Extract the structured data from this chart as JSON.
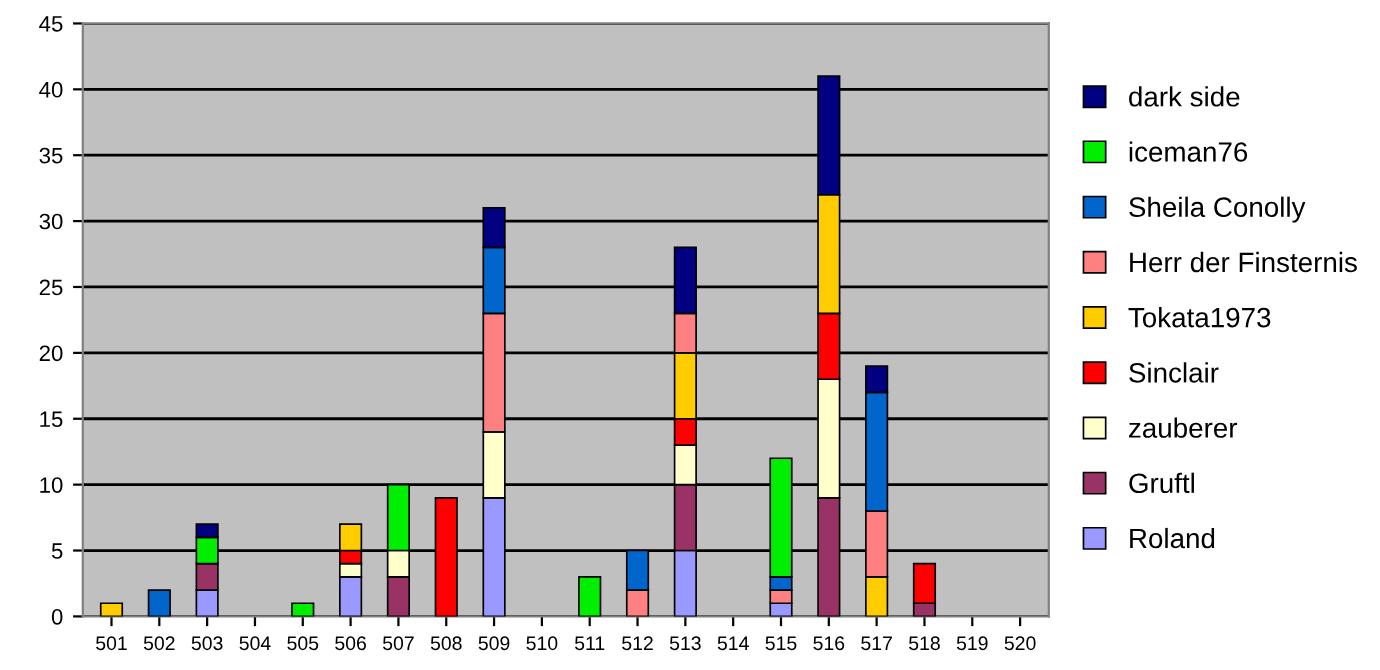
{
  "chart_data": {
    "type": "bar",
    "stacked": true,
    "categories": [
      "501",
      "502",
      "503",
      "504",
      "505",
      "506",
      "507",
      "508",
      "509",
      "510",
      "511",
      "512",
      "513",
      "514",
      "515",
      "516",
      "517",
      "518",
      "519",
      "520"
    ],
    "series": [
      {
        "name": "Roland",
        "color": "#9999ff",
        "values": [
          0,
          0,
          2,
          0,
          0,
          3,
          0,
          0,
          9,
          0,
          0,
          0,
          5,
          0,
          1,
          0,
          0,
          0,
          0,
          0
        ]
      },
      {
        "name": "Gruftl",
        "color": "#993366",
        "values": [
          0,
          0,
          2,
          0,
          0,
          0,
          3,
          0,
          0,
          0,
          0,
          0,
          5,
          0,
          0,
          9,
          0,
          1,
          0,
          0
        ]
      },
      {
        "name": "zauberer",
        "color": "#ffffcc",
        "values": [
          0,
          0,
          0,
          0,
          0,
          1,
          2,
          0,
          5,
          0,
          0,
          0,
          3,
          0,
          0,
          9,
          0,
          0,
          0,
          0
        ]
      },
      {
        "name": "Sinclair",
        "color": "#ff0000",
        "values": [
          0,
          0,
          0,
          0,
          0,
          1,
          0,
          9,
          0,
          0,
          0,
          0,
          2,
          0,
          0,
          5,
          0,
          3,
          0,
          0
        ]
      },
      {
        "name": "Tokata1973",
        "color": "#ffcc00",
        "values": [
          1,
          0,
          0,
          0,
          0,
          2,
          0,
          0,
          0,
          0,
          0,
          0,
          5,
          0,
          0,
          9,
          3,
          0,
          0,
          0
        ]
      },
      {
        "name": "Herr der Finsternis",
        "color": "#ff8080",
        "values": [
          0,
          0,
          0,
          0,
          0,
          0,
          0,
          0,
          9,
          0,
          0,
          2,
          3,
          0,
          1,
          0,
          5,
          0,
          0,
          0
        ]
      },
      {
        "name": "Sheila Conolly",
        "color": "#0066cc",
        "values": [
          0,
          2,
          0,
          0,
          0,
          0,
          0,
          0,
          5,
          0,
          0,
          3,
          0,
          0,
          1,
          0,
          9,
          0,
          0,
          0
        ]
      },
      {
        "name": "iceman76",
        "color": "#00ee00",
        "values": [
          0,
          0,
          2,
          0,
          1,
          0,
          5,
          0,
          0,
          0,
          3,
          0,
          0,
          0,
          9,
          0,
          0,
          0,
          0,
          0
        ]
      },
      {
        "name": "dark side",
        "color": "#000080",
        "values": [
          0,
          0,
          1,
          0,
          0,
          0,
          0,
          0,
          3,
          0,
          0,
          0,
          5,
          0,
          0,
          9,
          2,
          0,
          0,
          0
        ]
      }
    ],
    "ylim": [
      0,
      45
    ],
    "yticks": [
      0,
      5,
      10,
      15,
      20,
      25,
      30,
      35,
      40,
      45
    ],
    "grid": "y",
    "legend": "right"
  }
}
